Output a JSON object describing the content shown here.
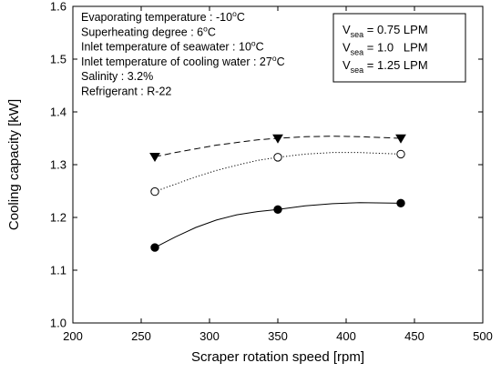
{
  "chart_data": {
    "type": "line",
    "xlabel": "Scraper rotation speed [rpm]",
    "ylabel": "Cooling capacity [kW]",
    "xlim": [
      200,
      500
    ],
    "ylim": [
      1.0,
      1.6
    ],
    "xticks": [
      200,
      250,
      300,
      350,
      400,
      450,
      500
    ],
    "yticks": [
      1.0,
      1.1,
      1.2,
      1.3,
      1.4,
      1.5,
      1.6
    ],
    "xtick_labels": [
      "200",
      "250",
      "300",
      "350",
      "400",
      "450",
      "500"
    ],
    "ytick_labels": [
      "1.0",
      "1.1",
      "1.2",
      "1.3",
      "1.4",
      "1.5",
      "1.6"
    ],
    "grid": false,
    "legend_position": "top-right",
    "series": [
      {
        "v_base": "V",
        "v_sub": "sea",
        "v_rest": " = 0.75 LPM",
        "marker": "filled-circle",
        "line": "solid",
        "x": [
          260,
          350,
          440
        ],
        "y": [
          1.143,
          1.215,
          1.227
        ],
        "curve": [
          [
            260,
            1.143
          ],
          [
            275,
            1.163
          ],
          [
            290,
            1.181
          ],
          [
            305,
            1.195
          ],
          [
            320,
            1.205
          ],
          [
            335,
            1.211
          ],
          [
            350,
            1.215
          ],
          [
            370,
            1.222
          ],
          [
            390,
            1.226
          ],
          [
            410,
            1.228
          ],
          [
            440,
            1.227
          ]
        ]
      },
      {
        "v_base": "V",
        "v_sub": "sea",
        "v_rest": " = 1.0   LPM",
        "marker": "open-circle",
        "line": "dotted",
        "x": [
          260,
          350,
          440
        ],
        "y": [
          1.249,
          1.314,
          1.32
        ],
        "curve": [
          [
            260,
            1.249
          ],
          [
            275,
            1.263
          ],
          [
            290,
            1.277
          ],
          [
            305,
            1.289
          ],
          [
            320,
            1.299
          ],
          [
            335,
            1.308
          ],
          [
            350,
            1.314
          ],
          [
            370,
            1.32
          ],
          [
            390,
            1.323
          ],
          [
            410,
            1.323
          ],
          [
            440,
            1.32
          ]
        ]
      },
      {
        "v_base": "V",
        "v_sub": "sea",
        "v_rest": " = 1.25 LPM",
        "marker": "filled-triangle-down",
        "line": "dashed",
        "x": [
          260,
          350,
          440
        ],
        "y": [
          1.315,
          1.35,
          1.35
        ],
        "curve": [
          [
            260,
            1.315
          ],
          [
            275,
            1.323
          ],
          [
            290,
            1.33
          ],
          [
            305,
            1.337
          ],
          [
            320,
            1.342
          ],
          [
            335,
            1.347
          ],
          [
            350,
            1.35
          ],
          [
            370,
            1.353
          ],
          [
            390,
            1.354
          ],
          [
            410,
            1.353
          ],
          [
            440,
            1.35
          ]
        ]
      }
    ],
    "annotations": [
      {
        "pre": "Evaporating temperature : -10",
        "sup": "o",
        "post": "C"
      },
      {
        "pre": "Superheating degree : 6",
        "sup": "o",
        "post": "C"
      },
      {
        "pre": "Inlet temperature of seawater : 10",
        "sup": "o",
        "post": "C"
      },
      {
        "pre": "Inlet temperature of cooling water : 27",
        "sup": "o",
        "post": "C"
      },
      {
        "pre": "Salinity : 3.2%",
        "sup": "",
        "post": ""
      },
      {
        "pre": "Refrigerant : R-22",
        "sup": "",
        "post": ""
      }
    ]
  }
}
